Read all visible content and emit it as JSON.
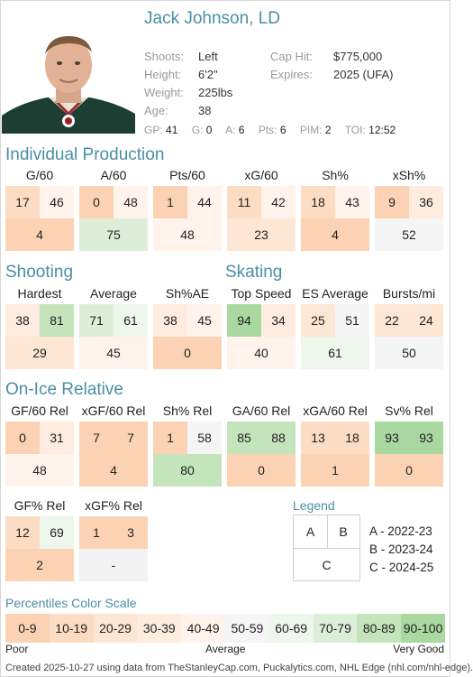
{
  "player": {
    "name": "Jack Johnson, LD",
    "shoots_label": "Shoots:",
    "shoots": "Left",
    "height_label": "Height:",
    "height": "6'2\"",
    "weight_label": "Weight:",
    "weight": "225lbs",
    "age_label": "Age:",
    "age": "38",
    "caphit_label": "Cap Hit:",
    "caphit": "$775,000",
    "expires_label": "Expires:",
    "expires": "2025 (UFA)"
  },
  "statline": [
    {
      "label": "GP:",
      "value": "41"
    },
    {
      "label": "G:",
      "value": "0"
    },
    {
      "label": "A:",
      "value": "6"
    },
    {
      "label": "Pts:",
      "value": "6"
    },
    {
      "label": "PIM:",
      "value": "2"
    },
    {
      "label": "TOI:",
      "value": "12:52"
    }
  ],
  "sections": {
    "individual": "Individual Production",
    "shooting": "Shooting",
    "skating": "Skating",
    "onice": "On-Ice Relative"
  },
  "individual": [
    {
      "label": "G/60",
      "a": 17,
      "b": 46,
      "c": 4
    },
    {
      "label": "A/60",
      "a": 0,
      "b": 48,
      "c": 75
    },
    {
      "label": "Pts/60",
      "a": 1,
      "b": 44,
      "c": 48
    },
    {
      "label": "xG/60",
      "a": 11,
      "b": 42,
      "c": 23
    },
    {
      "label": "Sh%",
      "a": 18,
      "b": 43,
      "c": 4
    },
    {
      "label": "xSh%",
      "a": 9,
      "b": 36,
      "c": 52
    }
  ],
  "shooting": [
    {
      "label": "Hardest",
      "a": 38,
      "b": 81,
      "c": 29
    },
    {
      "label": "Average",
      "a": 71,
      "b": 61,
      "c": 45
    },
    {
      "label": "Sh%AE",
      "a": 38,
      "b": 45,
      "c": 0
    }
  ],
  "skating": [
    {
      "label": "Top Speed",
      "a": 94,
      "b": 34,
      "c": 40
    },
    {
      "label": "ES Average",
      "a": 25,
      "b": 51,
      "c": 61
    },
    {
      "label": "Bursts/mi",
      "a": 22,
      "b": 24,
      "c": 50
    }
  ],
  "onice": [
    {
      "label": "GF/60 Rel",
      "a": 0,
      "b": 31,
      "c": 48
    },
    {
      "label": "xGF/60 Rel",
      "a": 7,
      "b": 7,
      "c": 4
    },
    {
      "label": "Sh% Rel",
      "a": 1,
      "b": 58,
      "c": 80
    },
    {
      "label": "GA/60 Rel",
      "a": 85,
      "b": 88,
      "c": 0
    },
    {
      "label": "xGA/60 Rel",
      "a": 13,
      "b": 18,
      "c": 1
    },
    {
      "label": "Sv% Rel",
      "a": 93,
      "b": 93,
      "c": 0
    }
  ],
  "onice2": [
    {
      "label": "GF% Rel",
      "a": 12,
      "b": 69,
      "c": 2
    },
    {
      "label": "xGF% Rel",
      "a": 1,
      "b": 3,
      "c": "-"
    }
  ],
  "legend": {
    "title": "Legend",
    "a": "A",
    "b": "B",
    "c": "C",
    "a_text": "A - 2022-23",
    "b_text": "B - 2023-24",
    "c_text": "C - 2024-25"
  },
  "scale": {
    "title": "Percentiles Color Scale",
    "bins": [
      "0-9",
      "10-19",
      "20-29",
      "30-39",
      "40-49",
      "50-59",
      "60-69",
      "70-79",
      "80-89",
      "90-100"
    ],
    "colors": [
      "#fbd2b3",
      "#fcdcc3",
      "#fde6d3",
      "#feece0",
      "#fff3ec",
      "#f5f5f5",
      "#eef7ec",
      "#ddeed8",
      "#c4e4bc",
      "#a9d8a0"
    ],
    "poor": "Poor",
    "average": "Average",
    "very_good": "Very Good"
  },
  "footer": "Created 2025-10-27 using data from TheStanleyCap.com, Puckalytics.com, NHL Edge (nhl.com/nhl-edge)."
}
